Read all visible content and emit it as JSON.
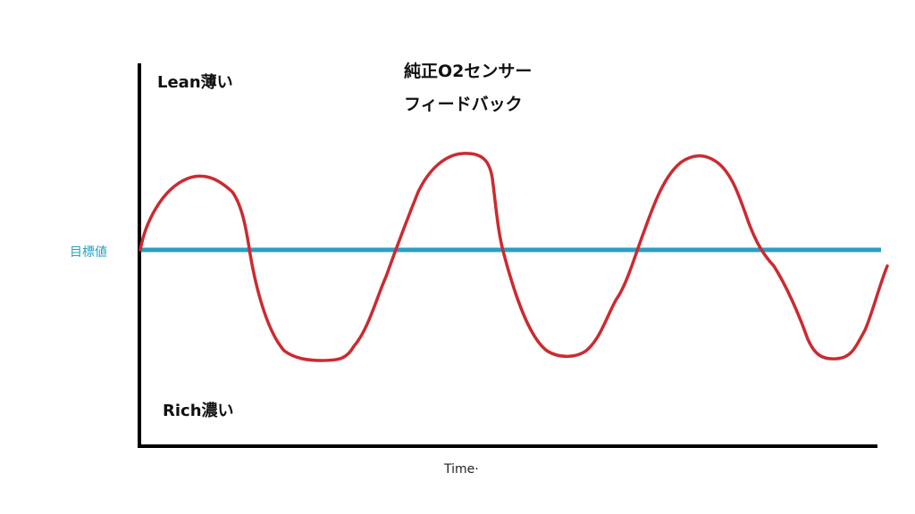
{
  "title_line1": "純正O2センサー",
  "title_line2": "フィードバック",
  "top_label": "Lean薄い",
  "bottom_label": "Rich濃い",
  "target_label": "目標値",
  "x_axis_label": "Time·",
  "colors": {
    "axis": "#000000",
    "target_line": "#2a9fc4",
    "wave": "#cc2a30"
  }
}
